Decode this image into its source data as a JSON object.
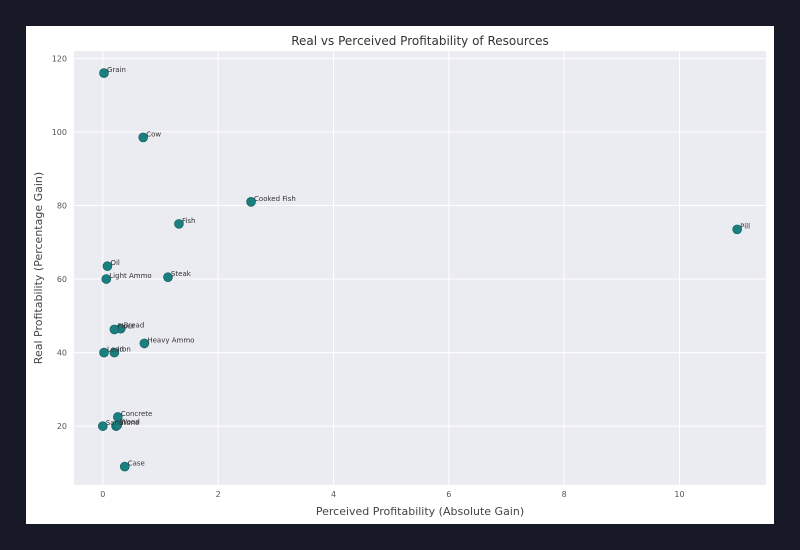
{
  "chart_data": {
    "type": "scatter",
    "title": "Real vs Perceived Profitability of Resources",
    "xlabel": "Perceived Profitability (Absolute Gain)",
    "ylabel": "Real Profitability (Percentage Gain)",
    "xlim": [
      -0.5,
      11.5
    ],
    "ylim": [
      4,
      122
    ],
    "xticks": [
      0,
      2,
      4,
      6,
      8,
      10
    ],
    "yticks": [
      20,
      40,
      60,
      80,
      100,
      120
    ],
    "grid": true,
    "marker_color": "#1a7f7f",
    "plot_background": "#ebebf2",
    "points": [
      {
        "label": "Grain",
        "x": 0.02,
        "y": 116
      },
      {
        "label": "Cow",
        "x": 0.7,
        "y": 98.5
      },
      {
        "label": "Cooked Fish",
        "x": 2.57,
        "y": 81
      },
      {
        "label": "Fish",
        "x": 1.32,
        "y": 75
      },
      {
        "label": "Pill",
        "x": 11.0,
        "y": 73.5
      },
      {
        "label": "Oil",
        "x": 0.08,
        "y": 63.5
      },
      {
        "label": "Light Ammo",
        "x": 0.06,
        "y": 60
      },
      {
        "label": "Steak",
        "x": 1.13,
        "y": 60.5
      },
      {
        "label": "Bread",
        "x": 0.31,
        "y": 46.5
      },
      {
        "label": "Flour",
        "x": 0.2,
        "y": 46.3
      },
      {
        "label": "Heavy Ammo",
        "x": 0.72,
        "y": 42.5
      },
      {
        "label": "Lead",
        "x": 0.02,
        "y": 40
      },
      {
        "label": "Iron",
        "x": 0.2,
        "y": 40
      },
      {
        "label": "Concrete",
        "x": 0.26,
        "y": 22.5
      },
      {
        "label": "Sand",
        "x": 0.0,
        "y": 20
      },
      {
        "label": "Stone",
        "x": 0.23,
        "y": 20
      },
      {
        "label": "Wood",
        "x": 0.25,
        "y": 20.3
      },
      {
        "label": "Case",
        "x": 0.38,
        "y": 9
      }
    ]
  }
}
